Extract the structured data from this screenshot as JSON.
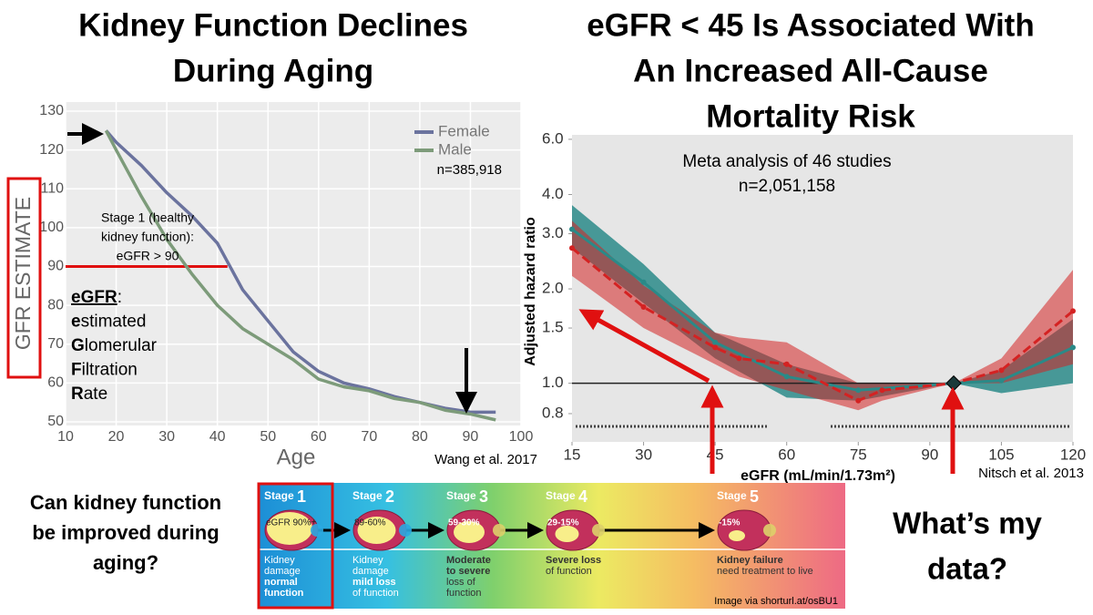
{
  "chart_data": [
    {
      "type": "line",
      "title": [
        "Kidney Function Declines",
        "During Aging"
      ],
      "xlabel": "Age",
      "ylabel": "GFR ESTIMATE",
      "xlim": [
        10,
        100
      ],
      "xticks": [
        10,
        20,
        30,
        40,
        50,
        60,
        70,
        80,
        90,
        100
      ],
      "ylim": [
        50,
        130
      ],
      "yticks": [
        50,
        60,
        70,
        80,
        90,
        100,
        110,
        120,
        130
      ],
      "grid": true,
      "legend": "upper right",
      "series": [
        {
          "name": "Female",
          "color": "#6b739e",
          "x": [
            18,
            20,
            25,
            30,
            35,
            40,
            45,
            50,
            55,
            60,
            65,
            70,
            75,
            80,
            85,
            90,
            95
          ],
          "values": [
            125,
            122,
            116,
            109,
            103,
            96,
            84,
            76,
            68,
            63,
            60,
            58.5,
            56.5,
            55,
            53.5,
            52.5,
            52.5
          ]
        },
        {
          "name": "Male",
          "color": "#7d9b7a",
          "x": [
            18,
            20,
            25,
            30,
            35,
            40,
            45,
            50,
            55,
            60,
            65,
            70,
            75,
            80,
            85,
            90,
            95
          ],
          "values": [
            125,
            120,
            108,
            97,
            88,
            80,
            74,
            70,
            66,
            61,
            59,
            58,
            56,
            55,
            53,
            52,
            50.5
          ]
        }
      ],
      "hline": {
        "y": 90,
        "x": [
          10,
          42
        ]
      },
      "annotations": {
        "sample": "n=385,918",
        "stage_note": [
          "Stage 1 (healthy",
          "kidney function):",
          "eGFR > 90"
        ],
        "definition": [
          "eGFR:",
          "estimated",
          "Glomerular",
          "Filtration",
          "Rate"
        ]
      },
      "source": "Wang et al. 2017"
    },
    {
      "type": "line",
      "title": [
        "eGFR < 45 Is Associated With",
        "An Increased All-Cause",
        "Mortality Risk"
      ],
      "xlabel": "eGFR (mL/min/1.73m²)",
      "ylabel": "Adjusted hazard ratio",
      "log_y": true,
      "xlim": [
        15,
        120
      ],
      "xticks": [
        15,
        30,
        45,
        60,
        75,
        90,
        105,
        120
      ],
      "ylim": [
        0.65,
        6.2
      ],
      "yticks": [
        0.8,
        {
          "value": 1,
          "label": "1.0"
        },
        1.5,
        {
          "value": 2,
          "label": "2.0"
        },
        {
          "value": 3,
          "label": "3.0"
        },
        {
          "value": 4,
          "label": "4.0"
        },
        {
          "value": 6,
          "label": "6.0"
        }
      ],
      "series": [
        {
          "color": "#2a8a88",
          "x": [
            15,
            30,
            45,
            60,
            75,
            95,
            105,
            120
          ],
          "values": [
            3.1,
            2.1,
            1.35,
            1.05,
            0.95,
            1.0,
            1.02,
            1.3
          ],
          "lower": [
            2.7,
            1.8,
            1.2,
            0.9,
            0.88,
            1.0,
            0.93,
            1.0
          ],
          "upper": [
            3.7,
            2.4,
            1.45,
            1.15,
            1.0,
            1.0,
            1.1,
            1.6
          ]
        },
        {
          "color": "#d42222",
          "x": [
            15,
            30,
            45,
            50,
            60,
            75,
            80,
            95,
            105,
            120
          ],
          "values": [
            2.7,
            1.75,
            1.3,
            1.2,
            1.15,
            0.88,
            0.95,
            1.0,
            1.1,
            1.7
          ],
          "lower": [
            2.2,
            1.5,
            1.15,
            1.05,
            0.95,
            0.82,
            0.88,
            1.0,
            1.0,
            1.15
          ],
          "upper": [
            3.3,
            2.05,
            1.45,
            1.4,
            1.35,
            1.0,
            1.0,
            1.0,
            1.2,
            2.3
          ]
        }
      ],
      "hline": {
        "y": 1,
        "x": [
          15,
          95
        ]
      },
      "annotations": {
        "text": [
          "Meta analysis of 46 studies",
          "n=2,051,158"
        ]
      },
      "source": "Nitsch et al. 2013"
    }
  ],
  "question": [
    "Can kidney function",
    "be improved during",
    "aging?"
  ],
  "closing": [
    "What’s my",
    "data?"
  ],
  "stages": [
    {
      "label": "Stage",
      "number": "1",
      "range": "eGFR 90%+",
      "parts": [
        {
          "text": "Kidney"
        },
        {
          "text": "damage"
        },
        {
          "text": "normal",
          "bold": true
        },
        {
          "text": "function",
          "bold": true
        }
      ]
    },
    {
      "label": "Stage",
      "number": "2",
      "range": "89-60%",
      "parts": [
        {
          "text": "Kidney"
        },
        {
          "text": "damage"
        },
        {
          "text": "mild loss",
          "bold": true
        },
        {
          "text": "of function"
        }
      ]
    },
    {
      "label": "Stage",
      "number": "3",
      "range": "59-30%",
      "parts": [
        {
          "text": "Moderate",
          "bold": true
        },
        {
          "text": "to severe",
          "bold": true
        },
        {
          "text": "loss of"
        },
        {
          "text": "function"
        }
      ]
    },
    {
      "label": "Stage",
      "number": "4",
      "range": "29-15%",
      "parts": [
        {
          "text": "Severe loss",
          "bold": true
        },
        {
          "text": "of function"
        }
      ]
    },
    {
      "label": "Stage",
      "number": "5",
      "range": "-15%",
      "parts": [
        {
          "text": "Kidney failure",
          "bold": true
        },
        {
          "text": "need treatment to live"
        }
      ]
    }
  ],
  "stages_source": "Image via shorturl.at/osBU1"
}
